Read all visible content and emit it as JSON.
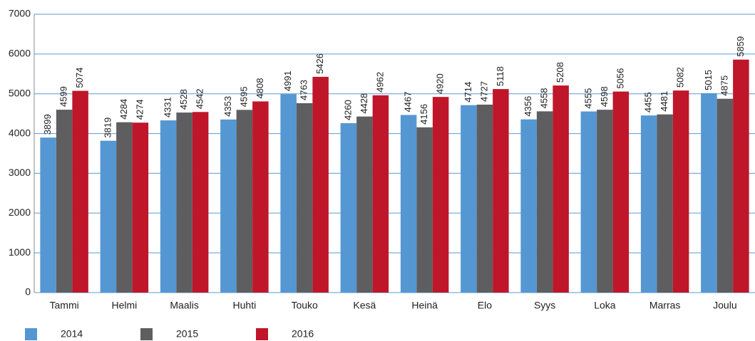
{
  "chart_data": {
    "type": "bar",
    "categories": [
      "Tammi",
      "Helmi",
      "Maalis",
      "Huhti",
      "Touko",
      "Kesä",
      "Heinä",
      "Elo",
      "Syys",
      "Loka",
      "Marras",
      "Joulu"
    ],
    "series": [
      {
        "name": "2014",
        "color": "#5597d2",
        "values": [
          3899,
          3819,
          4331,
          4353,
          4991,
          4260,
          4467,
          4714,
          4356,
          4555,
          4455,
          5015
        ]
      },
      {
        "name": "2015",
        "color": "#5e5e60",
        "values": [
          4599,
          4284,
          4528,
          4595,
          4763,
          4428,
          4156,
          4727,
          4558,
          4598,
          4481,
          4875
        ]
      },
      {
        "name": "2016",
        "color": "#c0162a",
        "values": [
          5074,
          4274,
          4542,
          4808,
          5426,
          4962,
          4920,
          5118,
          5208,
          5056,
          5082,
          5859
        ]
      }
    ],
    "ylim": [
      0,
      7000
    ],
    "yticks": [
      0,
      1000,
      2000,
      3000,
      4000,
      5000,
      6000,
      7000
    ],
    "grid": true,
    "legend": "bottom"
  }
}
